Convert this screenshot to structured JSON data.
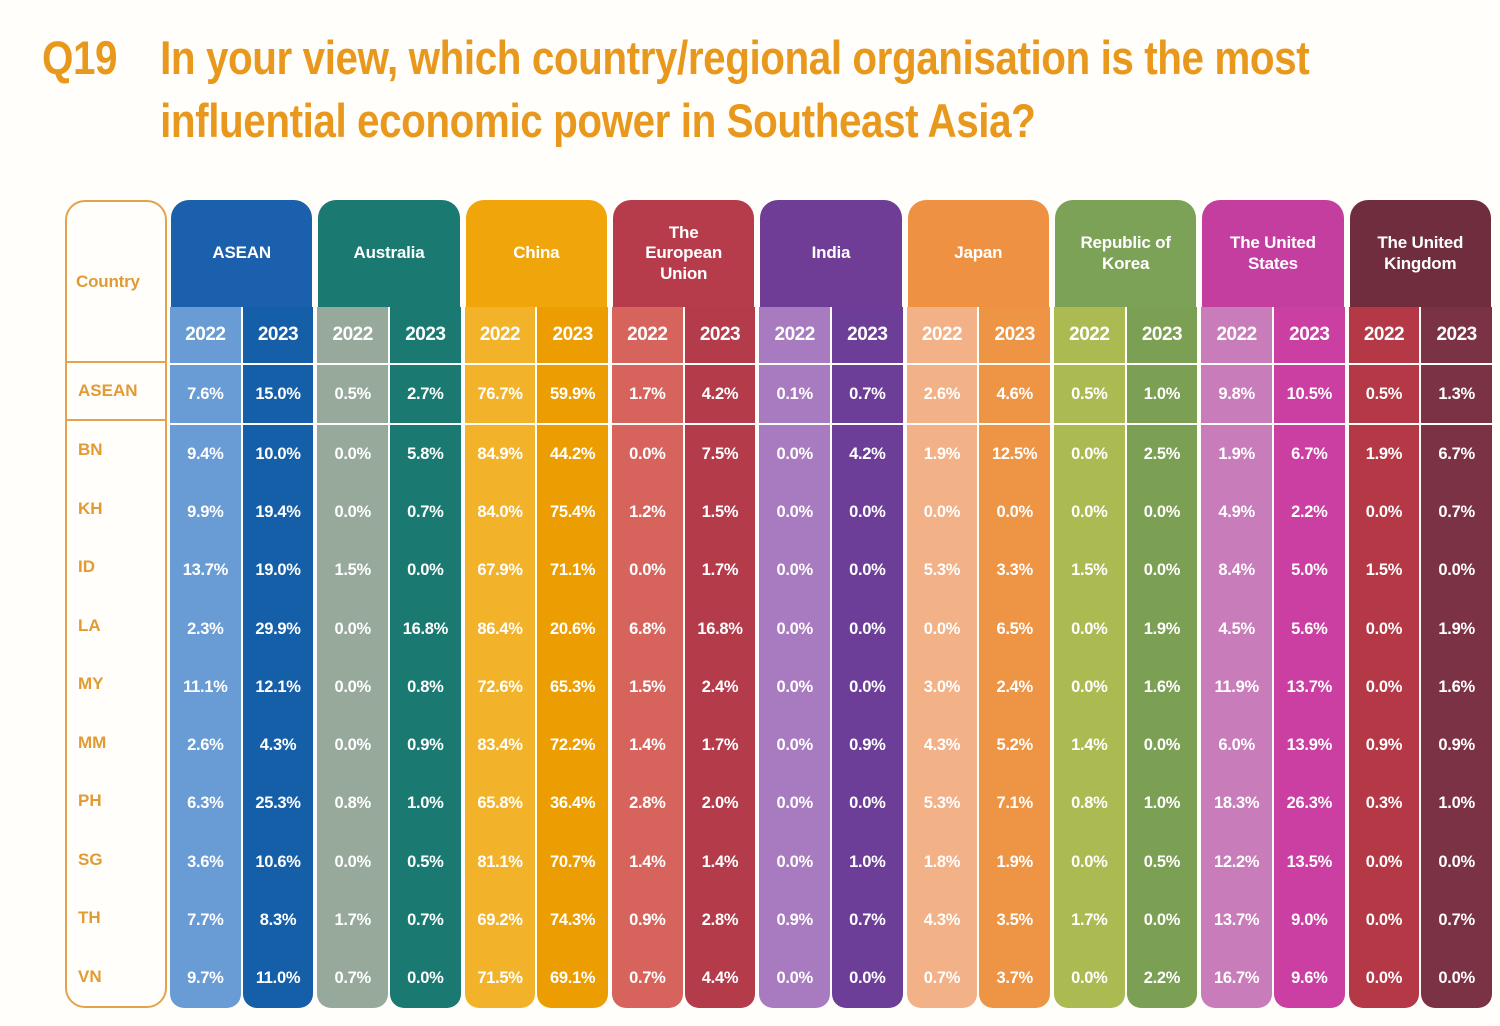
{
  "header": {
    "q_number": "Q19",
    "question": "In your view, which country/regional organisation is the most\ninfluential economic power in Southeast Asia?"
  },
  "colors": {
    "title_orange": "#E8991D",
    "label_orange": "#E29A33",
    "border_orange": "#E3A24E",
    "background": "#FFFEFB"
  },
  "table_meta": {
    "corner_label": "Country",
    "year_labels": [
      "2022",
      "2023"
    ],
    "groups": [
      {
        "name": "ASEAN",
        "display": "ASEAN",
        "bubble": "#1A60AC",
        "c2022": "#699CD4",
        "c2023": "#155FA9"
      },
      {
        "name": "Australia",
        "display": "Australia",
        "bubble": "#1A7A71",
        "c2022": "#96A99B",
        "c2023": "#1A7A71"
      },
      {
        "name": "China",
        "display": "China",
        "bubble": "#F0A60A",
        "c2022": "#F2B32A",
        "c2023": "#EC9D02"
      },
      {
        "name": "The European Union",
        "display": "The\nEuropean\nUnion",
        "bubble": "#B73C4B",
        "c2022": "#D6645C",
        "c2023": "#B43B4A"
      },
      {
        "name": "India",
        "display": "India",
        "bubble": "#6F3D96",
        "c2022": "#A87BC1",
        "c2023": "#6C3E97"
      },
      {
        "name": "Japan",
        "display": "Japan",
        "bubble": "#EE9143",
        "c2022": "#F3B188",
        "c2023": "#EE9445"
      },
      {
        "name": "Republic of Korea",
        "display": "Republic of\nKorea",
        "bubble": "#7CA258",
        "c2022": "#ACBA52",
        "c2023": "#7BA053"
      },
      {
        "name": "The United States",
        "display": "The United\nStates",
        "bubble": "#C33E9E",
        "c2022": "#C97CBA",
        "c2023": "#CB3EA2"
      },
      {
        "name": "The United Kingdom",
        "display": "The United\nKingdom",
        "bubble": "#6F2D3E",
        "c2022": "#B43845",
        "c2023": "#7C3245"
      }
    ]
  },
  "chart_data": {
    "type": "table",
    "title": "Q19 In your view, which country/regional organisation is the most influential economic power in Southeast Asia?",
    "row_header": "Country",
    "years": [
      "2022",
      "2023"
    ],
    "column_groups": [
      "ASEAN",
      "Australia",
      "China",
      "The European Union",
      "India",
      "Japan",
      "Republic of Korea",
      "The United States",
      "The United Kingdom"
    ],
    "value_order": "for each row: [ASEAN 2022, ASEAN 2023, Australia 2022, Australia 2023, China 2022, China 2023, EU 2022, EU 2023, India 2022, India 2023, Japan 2022, Japan 2023, Korea 2022, Korea 2023, US 2022, US 2023, UK 2022, UK 2023]",
    "rows": [
      {
        "label": "ASEAN",
        "values": [
          "7.6%",
          "15.0%",
          "0.5%",
          "2.7%",
          "76.7%",
          "59.9%",
          "1.7%",
          "4.2%",
          "0.1%",
          "0.7%",
          "2.6%",
          "4.6%",
          "0.5%",
          "1.0%",
          "9.8%",
          "10.5%",
          "0.5%",
          "1.3%"
        ]
      },
      {
        "label": "BN",
        "values": [
          "9.4%",
          "10.0%",
          "0.0%",
          "5.8%",
          "84.9%",
          "44.2%",
          "0.0%",
          "7.5%",
          "0.0%",
          "4.2%",
          "1.9%",
          "12.5%",
          "0.0%",
          "2.5%",
          "1.9%",
          "6.7%",
          "1.9%",
          "6.7%"
        ]
      },
      {
        "label": "KH",
        "values": [
          "9.9%",
          "19.4%",
          "0.0%",
          "0.7%",
          "84.0%",
          "75.4%",
          "1.2%",
          "1.5%",
          "0.0%",
          "0.0%",
          "0.0%",
          "0.0%",
          "0.0%",
          "0.0%",
          "4.9%",
          "2.2%",
          "0.0%",
          "0.7%"
        ]
      },
      {
        "label": "ID",
        "values": [
          "13.7%",
          "19.0%",
          "1.5%",
          "0.0%",
          "67.9%",
          "71.1%",
          "0.0%",
          "1.7%",
          "0.0%",
          "0.0%",
          "5.3%",
          "3.3%",
          "1.5%",
          "0.0%",
          "8.4%",
          "5.0%",
          "1.5%",
          "0.0%"
        ]
      },
      {
        "label": "LA",
        "values": [
          "2.3%",
          "29.9%",
          "0.0%",
          "16.8%",
          "86.4%",
          "20.6%",
          "6.8%",
          "16.8%",
          "0.0%",
          "0.0%",
          "0.0%",
          "6.5%",
          "0.0%",
          "1.9%",
          "4.5%",
          "5.6%",
          "0.0%",
          "1.9%"
        ]
      },
      {
        "label": "MY",
        "values": [
          "11.1%",
          "12.1%",
          "0.0%",
          "0.8%",
          "72.6%",
          "65.3%",
          "1.5%",
          "2.4%",
          "0.0%",
          "0.0%",
          "3.0%",
          "2.4%",
          "0.0%",
          "1.6%",
          "11.9%",
          "13.7%",
          "0.0%",
          "1.6%"
        ]
      },
      {
        "label": "MM",
        "values": [
          "2.6%",
          "4.3%",
          "0.0%",
          "0.9%",
          "83.4%",
          "72.2%",
          "1.4%",
          "1.7%",
          "0.0%",
          "0.9%",
          "4.3%",
          "5.2%",
          "1.4%",
          "0.0%",
          "6.0%",
          "13.9%",
          "0.9%",
          "0.9%"
        ]
      },
      {
        "label": "PH",
        "values": [
          "6.3%",
          "25.3%",
          "0.8%",
          "1.0%",
          "65.8%",
          "36.4%",
          "2.8%",
          "2.0%",
          "0.0%",
          "0.0%",
          "5.3%",
          "7.1%",
          "0.8%",
          "1.0%",
          "18.3%",
          "26.3%",
          "0.3%",
          "1.0%"
        ]
      },
      {
        "label": "SG",
        "values": [
          "3.6%",
          "10.6%",
          "0.0%",
          "0.5%",
          "81.1%",
          "70.7%",
          "1.4%",
          "1.4%",
          "0.0%",
          "1.0%",
          "1.8%",
          "1.9%",
          "0.0%",
          "0.5%",
          "12.2%",
          "13.5%",
          "0.0%",
          "0.0%"
        ]
      },
      {
        "label": "TH",
        "values": [
          "7.7%",
          "8.3%",
          "1.7%",
          "0.7%",
          "69.2%",
          "74.3%",
          "0.9%",
          "2.8%",
          "0.9%",
          "0.7%",
          "4.3%",
          "3.5%",
          "1.7%",
          "0.0%",
          "13.7%",
          "9.0%",
          "0.0%",
          "0.7%"
        ]
      },
      {
        "label": "VN",
        "values": [
          "9.7%",
          "11.0%",
          "0.7%",
          "0.0%",
          "71.5%",
          "69.1%",
          "0.7%",
          "4.4%",
          "0.0%",
          "0.0%",
          "0.7%",
          "3.7%",
          "0.0%",
          "2.2%",
          "16.7%",
          "9.6%",
          "0.0%",
          "0.0%"
        ]
      }
    ]
  }
}
